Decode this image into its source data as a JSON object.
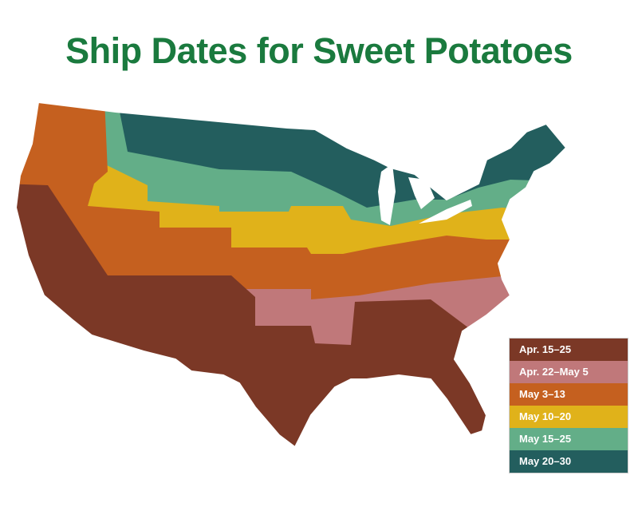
{
  "title": "Ship Dates for Sweet Potatoes",
  "legend": [
    {
      "label": "Apr. 15–25",
      "color": "#7b3826"
    },
    {
      "label": "Apr. 22–May 5",
      "color": "#c0787a"
    },
    {
      "label": "May 3–13",
      "color": "#c5601f"
    },
    {
      "label": "May 10–20",
      "color": "#e0b21a"
    },
    {
      "label": "May 15–25",
      "color": "#63ae88"
    },
    {
      "label": "May 20–30",
      "color": "#235e5e"
    }
  ]
}
